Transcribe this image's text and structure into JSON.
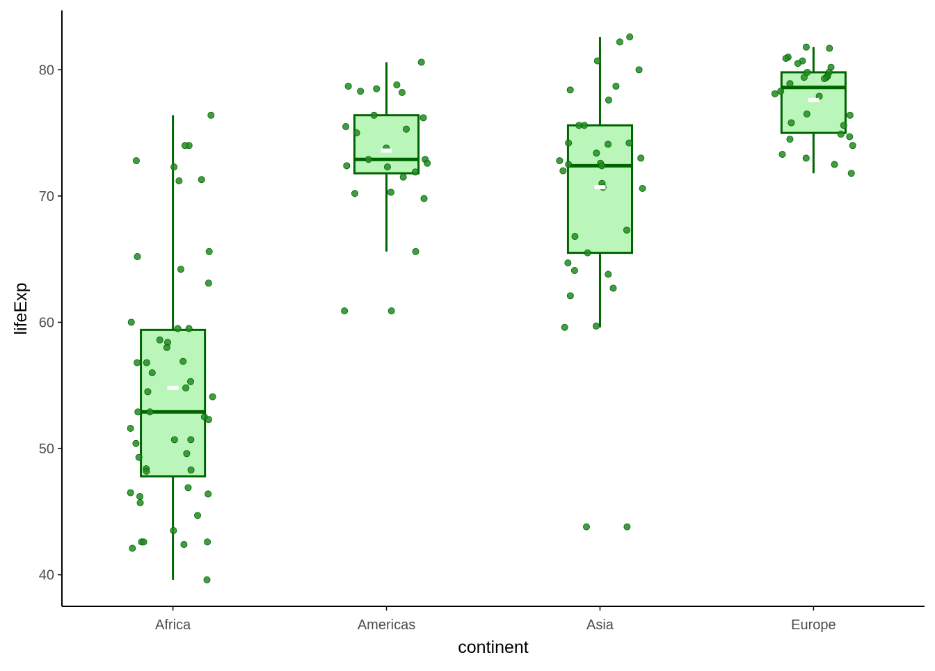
{
  "colors": {
    "box_fill": "#baf5ba",
    "box_line": "#006400",
    "point": "#228b22",
    "mean_marker": "#ffffff",
    "axis": "#000000",
    "tick_text": "#4d4d4d"
  },
  "chart_data": {
    "type": "boxplot",
    "title": "",
    "xlabel": "continent",
    "ylabel": "lifeExp",
    "ylim": [
      37.5,
      84.7
    ],
    "yticks": [
      40,
      50,
      60,
      70,
      80
    ],
    "grid": false,
    "legend": "none",
    "categories": [
      "Africa",
      "Americas",
      "Asia",
      "Europe"
    ],
    "boxes": [
      {
        "category": "Africa",
        "whisker_low": 39.6,
        "q1": 47.8,
        "median": 52.9,
        "q3": 59.4,
        "whisker_high": 76.4,
        "mean": 54.8
      },
      {
        "category": "Americas",
        "whisker_low": 65.6,
        "q1": 71.8,
        "median": 72.9,
        "q3": 76.4,
        "whisker_high": 80.6,
        "mean": 73.6
      },
      {
        "category": "Asia",
        "whisker_low": 59.6,
        "q1": 65.5,
        "median": 72.4,
        "q3": 75.6,
        "whisker_high": 82.6,
        "mean": 70.7
      },
      {
        "category": "Europe",
        "whisker_low": 71.8,
        "q1": 75.0,
        "median": 78.6,
        "q3": 79.8,
        "whisker_high": 81.8,
        "mean": 77.6
      }
    ],
    "points": [
      {
        "category": "Africa",
        "values": [
          76.4,
          74.0,
          72.8,
          72.3,
          71.2,
          71.3,
          74.0,
          65.6,
          65.2,
          64.2,
          63.1,
          60.0,
          59.5,
          59.5,
          58.6,
          58.4,
          58.0,
          56.9,
          56.8,
          56.8,
          56.0,
          55.3,
          54.8,
          54.5,
          54.1,
          52.9,
          52.9,
          52.5,
          52.3,
          51.6,
          50.7,
          50.7,
          50.4,
          49.6,
          49.3,
          48.4,
          48.3,
          48.2,
          46.9,
          46.5,
          46.4,
          46.2,
          45.7,
          44.7,
          43.5,
          42.6,
          42.6,
          42.6,
          42.4,
          42.1,
          39.6
        ]
      },
      {
        "category": "Americas",
        "values": [
          80.6,
          78.8,
          78.7,
          78.5,
          78.3,
          78.2,
          76.4,
          76.2,
          75.5,
          75.3,
          75.0,
          73.8,
          72.9,
          72.9,
          72.6,
          72.4,
          72.3,
          71.9,
          71.5,
          70.3,
          70.2,
          69.8,
          65.6,
          60.9,
          60.9
        ]
      },
      {
        "category": "Asia",
        "values": [
          82.6,
          82.2,
          80.7,
          80.0,
          78.7,
          78.4,
          77.6,
          75.6,
          75.6,
          74.2,
          74.2,
          74.1,
          73.4,
          73.0,
          72.8,
          72.6,
          72.5,
          72.4,
          72.0,
          71.0,
          70.7,
          70.6,
          67.3,
          66.8,
          65.5,
          64.7,
          64.1,
          63.8,
          62.7,
          62.1,
          59.7,
          59.6,
          43.8,
          43.8
        ]
      },
      {
        "category": "Europe",
        "values": [
          81.8,
          81.7,
          81.0,
          80.9,
          80.7,
          80.5,
          80.2,
          79.8,
          79.8,
          79.5,
          79.4,
          79.4,
          79.3,
          78.9,
          78.3,
          78.1,
          77.9,
          76.5,
          76.4,
          75.8,
          75.6,
          74.9,
          74.7,
          74.5,
          74.0,
          73.3,
          73.0,
          72.5,
          71.8
        ]
      }
    ]
  }
}
